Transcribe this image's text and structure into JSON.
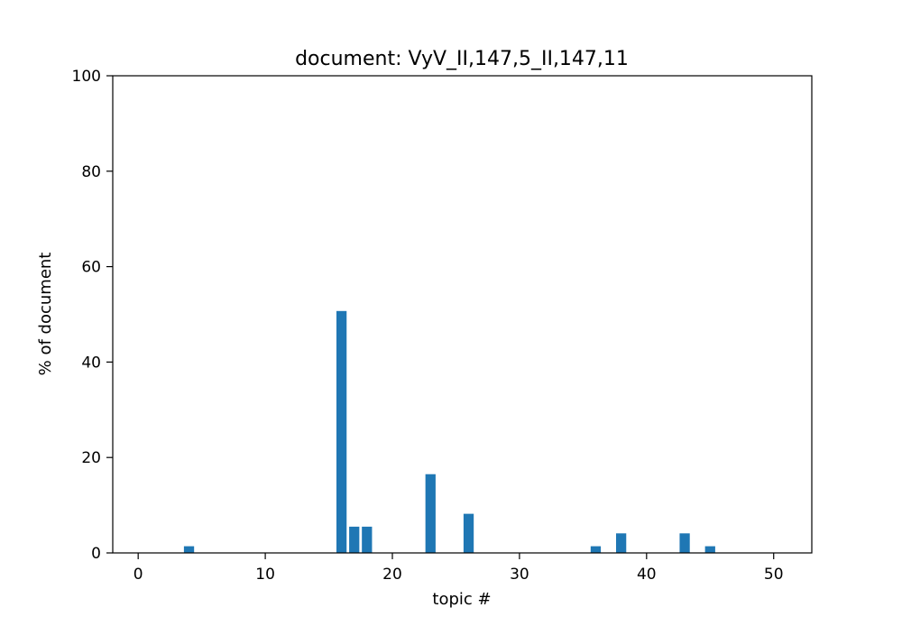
{
  "chart_data": {
    "type": "bar",
    "title": "document: VyV_II,147,5_II,147,11",
    "xlabel": "topic #",
    "ylabel": "% of document",
    "xlim": [
      -2,
      53
    ],
    "ylim": [
      0,
      100
    ],
    "x_ticks": [
      0,
      10,
      20,
      30,
      40,
      50
    ],
    "y_ticks": [
      0,
      20,
      40,
      60,
      80,
      100
    ],
    "grid": false,
    "bar_color": "#1f77b4",
    "series": [
      {
        "x": [
          0,
          1,
          2,
          3,
          4,
          5,
          6,
          7,
          8,
          9,
          10,
          11,
          12,
          13,
          14,
          15,
          16,
          17,
          18,
          19,
          20,
          21,
          22,
          23,
          24,
          25,
          26,
          27,
          28,
          29,
          30,
          31,
          32,
          33,
          34,
          35,
          36,
          37,
          38,
          39,
          40,
          41,
          42,
          43,
          44,
          45,
          46,
          47,
          48,
          49,
          50
        ],
        "values": [
          0,
          0,
          0,
          0,
          1.4,
          0,
          0,
          0,
          0,
          0,
          0,
          0,
          0,
          0,
          0,
          0,
          50.7,
          5.5,
          5.5,
          0,
          0,
          0,
          0,
          16.5,
          0,
          0,
          8.2,
          0,
          0,
          0,
          0,
          0,
          0,
          0,
          0,
          0,
          1.4,
          0,
          4.1,
          0,
          0,
          0,
          0,
          4.1,
          0,
          1.4,
          0,
          0,
          0,
          0,
          0
        ]
      }
    ]
  }
}
